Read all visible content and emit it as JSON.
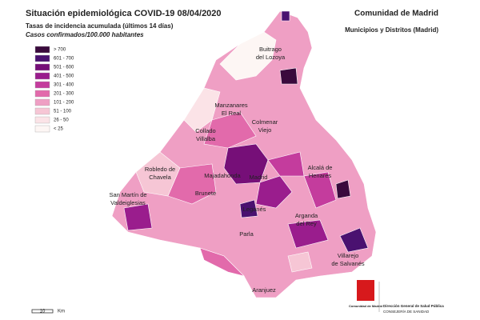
{
  "header": {
    "title": "Situación epidemiológica COVID-19  08/04/2020",
    "subtitle": "Tasas de incidencia acumulada (últimos 14 días)",
    "subtitle2": "Casos confirmados/100.000 habitantes",
    "region": "Comunidad de Madrid",
    "region_subtitle": "Municipios y Distritos (Madrid)"
  },
  "legend": [
    {
      "label": "> 700",
      "color": "#3a0a3d"
    },
    {
      "label": "601 - 700",
      "color": "#4a1170"
    },
    {
      "label": "501 - 600",
      "color": "#760f78"
    },
    {
      "label": "401 - 500",
      "color": "#9a1d8d"
    },
    {
      "label": "301 - 400",
      "color": "#c43c9d"
    },
    {
      "label": "201 - 300",
      "color": "#e26aab"
    },
    {
      "label": "101 - 200",
      "color": "#ef9fc4"
    },
    {
      "label": "51 - 100",
      "color": "#f6c6d5"
    },
    {
      "label": "26 - 50",
      "color": "#fbe3e7"
    },
    {
      "label": "< 25",
      "color": "#fdf6f4"
    }
  ],
  "places": [
    {
      "lines": [
        "Buitrago",
        "del Lozoya"
      ]
    },
    {
      "lines": [
        "Manzanares",
        "El Real"
      ]
    },
    {
      "lines": [
        "Colmenar",
        "Viejo"
      ]
    },
    {
      "lines": [
        "Collado",
        "Villalba"
      ]
    },
    {
      "lines": [
        "Robledo de",
        "Chavela"
      ]
    },
    {
      "lines": [
        "Majadahonda"
      ]
    },
    {
      "lines": [
        "Madrid"
      ]
    },
    {
      "lines": [
        "Alcalá de",
        "Henares"
      ]
    },
    {
      "lines": [
        "San Martín de",
        "Valdeiglesias"
      ]
    },
    {
      "lines": [
        "Brunete"
      ]
    },
    {
      "lines": [
        "Leganés"
      ]
    },
    {
      "lines": [
        "Arganda",
        "del Rey"
      ]
    },
    {
      "lines": [
        "Parla"
      ]
    },
    {
      "lines": [
        "Villarejo",
        "de Salvanés"
      ]
    },
    {
      "lines": [
        "Aranjuez"
      ]
    }
  ],
  "scale": {
    "value": "10",
    "unit": "Km"
  },
  "footer": {
    "logo": "Comunidad de Madrid",
    "dept": "Dirección General de Salud Pública",
    "dept2": "CONSEJERÍA DE SANIDAD"
  }
}
